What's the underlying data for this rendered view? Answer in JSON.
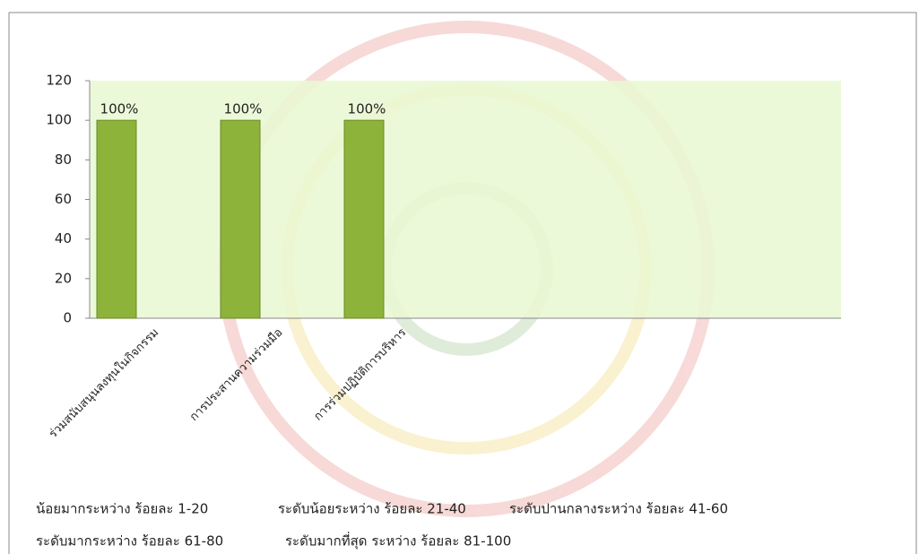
{
  "chart_data": {
    "type": "bar",
    "categories": [
      "ร่วมสนับสนุนลงทุนในกิจกรรม",
      "การประสานความร่วมมือ",
      "การร่วมปฏิบัติการบริหาร"
    ],
    "values": [
      100,
      100,
      100
    ],
    "value_labels": [
      "100%",
      "100%",
      "100%"
    ],
    "color": "#8db33a",
    "plot_background": "#e9f8d2",
    "ylim": [
      0,
      120
    ],
    "yticks": [
      0,
      20,
      40,
      60,
      80,
      100,
      120
    ],
    "grid": false
  },
  "notes": [
    [
      "น้อยมากระหว่าง ร้อยละ 1-20",
      "ระดับน้อยระหว่าง ร้อยละ 21-40",
      "ระดับปานกลางระหว่าง ร้อยละ 41-60"
    ],
    [
      "ระดับมากระหว่าง ร้อยละ 61-80",
      "ระดับมากที่สุด ระหว่าง ร้อยละ 81-100"
    ]
  ]
}
